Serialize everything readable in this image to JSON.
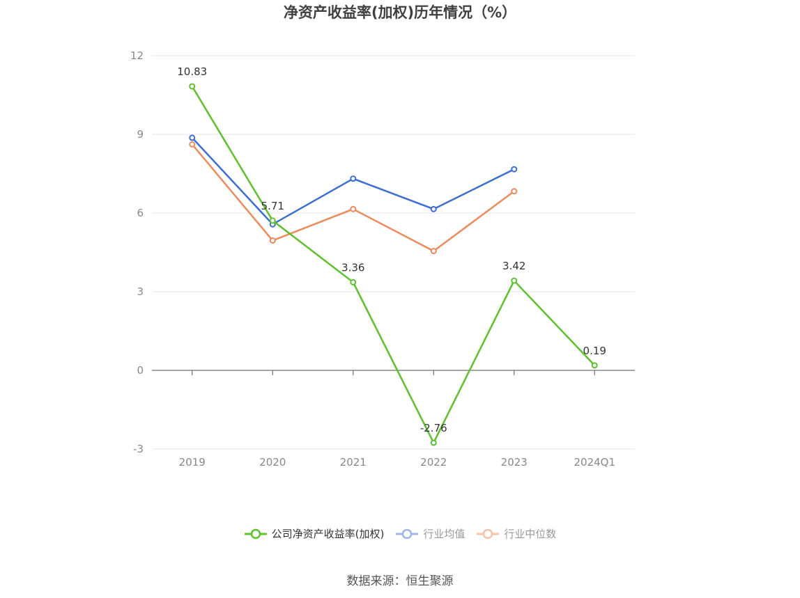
{
  "chart_data": {
    "type": "line",
    "title": "净资产收益率(加权)历年情况（%）",
    "categories": [
      "2019",
      "2020",
      "2021",
      "2022",
      "2023",
      "2024Q1"
    ],
    "ylim": [
      -3,
      12
    ],
    "yticks": [
      -3,
      0,
      3,
      6,
      9,
      12
    ],
    "grid": true,
    "legend_position": "bottom",
    "series": [
      {
        "name": "公司净资产收益率(加权)",
        "color": "#5cc22b",
        "values": [
          10.83,
          5.71,
          3.36,
          -2.76,
          3.42,
          0.19
        ],
        "labels": [
          "10.83",
          "5.71",
          "3.36",
          "-2.76",
          "3.42",
          "0.19"
        ]
      },
      {
        "name": "行业均值",
        "color": "#3b6fd6",
        "values": [
          8.87,
          5.57,
          7.31,
          6.15,
          7.67,
          null
        ]
      },
      {
        "name": "行业中位数",
        "color": "#ef8a5a",
        "values": [
          8.62,
          4.95,
          6.15,
          4.55,
          6.83,
          null
        ]
      }
    ]
  },
  "source": "数据来源：恒生聚源"
}
